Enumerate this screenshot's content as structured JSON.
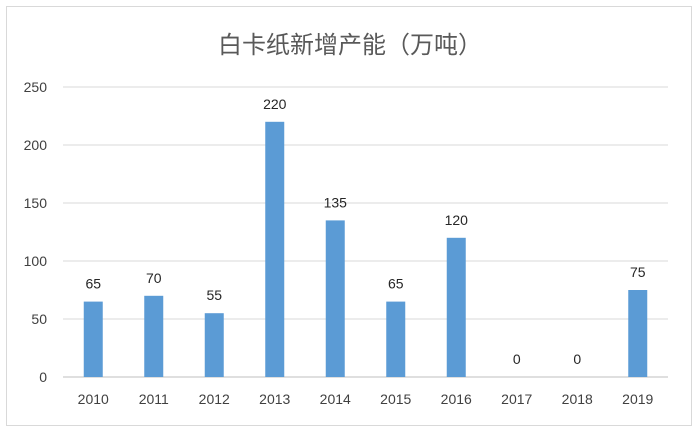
{
  "chart_data": {
    "type": "bar",
    "title": "白卡纸新增产能（万吨）",
    "categories": [
      "2010",
      "2011",
      "2012",
      "2013",
      "2014",
      "2015",
      "2016",
      "2017",
      "2018",
      "2019"
    ],
    "values": [
      65,
      70,
      55,
      220,
      135,
      65,
      120,
      0,
      0,
      75
    ],
    "ylim": [
      0,
      250
    ],
    "yticks": [
      0,
      50,
      100,
      150,
      200,
      250
    ],
    "grid": true,
    "legend": "none",
    "bar_color": "#5b9bd5"
  }
}
